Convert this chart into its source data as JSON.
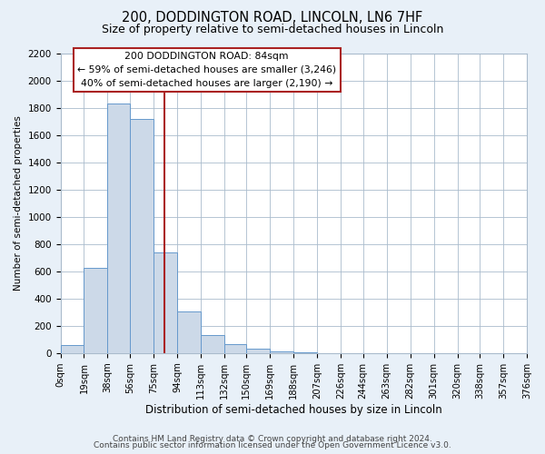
{
  "title": "200, DODDINGTON ROAD, LINCOLN, LN6 7HF",
  "subtitle": "Size of property relative to semi-detached houses in Lincoln",
  "xlabel": "Distribution of semi-detached houses by size in Lincoln",
  "ylabel": "Number of semi-detached properties",
  "bin_edges": [
    0,
    19,
    38,
    56,
    75,
    94,
    113,
    132,
    150,
    169,
    188,
    207,
    226,
    244,
    263,
    282,
    301,
    320,
    338,
    357,
    376
  ],
  "bin_counts": [
    60,
    625,
    1830,
    1720,
    740,
    305,
    130,
    65,
    35,
    15,
    5,
    2,
    1,
    0,
    0,
    0,
    0,
    0,
    0,
    0
  ],
  "bar_facecolor": "#ccd9e8",
  "bar_edgecolor": "#6699cc",
  "vline_x": 84,
  "vline_color": "#aa2222",
  "annotation_title": "200 DODDINGTON ROAD: 84sqm",
  "annotation_line1": "← 59% of semi-detached houses are smaller (3,246)",
  "annotation_line2": "40% of semi-detached houses are larger (2,190) →",
  "annotation_box_edgecolor": "#aa2222",
  "ylim": [
    0,
    2200
  ],
  "yticks": [
    0,
    200,
    400,
    600,
    800,
    1000,
    1200,
    1400,
    1600,
    1800,
    2000,
    2200
  ],
  "tick_labels": [
    "0sqm",
    "19sqm",
    "38sqm",
    "56sqm",
    "75sqm",
    "94sqm",
    "113sqm",
    "132sqm",
    "150sqm",
    "169sqm",
    "188sqm",
    "207sqm",
    "226sqm",
    "244sqm",
    "263sqm",
    "282sqm",
    "301sqm",
    "320sqm",
    "338sqm",
    "357sqm",
    "376sqm"
  ],
  "footer1": "Contains HM Land Registry data © Crown copyright and database right 2024.",
  "footer2": "Contains public sector information licensed under the Open Government Licence v3.0.",
  "background_color": "#e8f0f8",
  "plot_background_color": "#ffffff",
  "grid_color": "#aabbcc",
  "title_fontsize": 10.5,
  "subtitle_fontsize": 9,
  "footer_fontsize": 6.5,
  "ann_fontsize": 7.8
}
